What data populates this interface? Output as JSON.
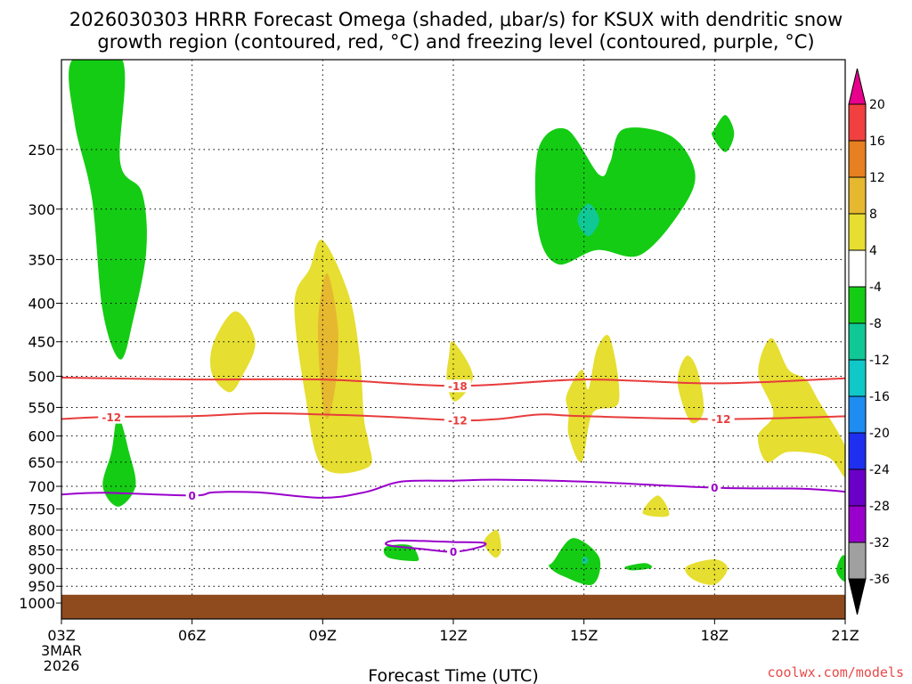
{
  "chart_data": {
    "type": "heatmap",
    "title_line1": "2026030303 HRRR Forecast Omega (shaded, μbar/s) for KSUX with dendritic snow",
    "title_line2": "growth region (contoured, red, °C) and freezing level (contoured, purple, °C)",
    "xlabel": "Forecast Time (UTC)",
    "x_range_hours": [
      0,
      18
    ],
    "x_ticks": [
      {
        "hour": 0,
        "label": "03Z",
        "sub": [
          "3MAR",
          "2026"
        ]
      },
      {
        "hour": 3,
        "label": "06Z"
      },
      {
        "hour": 6,
        "label": "09Z"
      },
      {
        "hour": 9,
        "label": "12Z"
      },
      {
        "hour": 12,
        "label": "15Z"
      },
      {
        "hour": 15,
        "label": "18Z"
      },
      {
        "hour": 18,
        "label": "21Z"
      }
    ],
    "y_axis": "pressure (mb), log scale",
    "y_range": [
      190,
      1050
    ],
    "y_ticks": [
      250,
      300,
      350,
      400,
      450,
      500,
      550,
      600,
      650,
      700,
      750,
      800,
      850,
      900,
      950,
      1000
    ],
    "ground_pressure": 975,
    "ground_color": "#8f4a1e",
    "colorbar": {
      "levels": [
        -36,
        -32,
        -28,
        -24,
        -20,
        -16,
        -12,
        -8,
        -4,
        4,
        8,
        12,
        16,
        20
      ],
      "labels": [
        "-36",
        "-32",
        "-28",
        "-24",
        "-20",
        "-16",
        "-12",
        "-8",
        "-4",
        "4",
        "8",
        "12",
        "16",
        "20"
      ],
      "colors": [
        "#000000",
        "#a0a0a0",
        "#9a00cc",
        "#6a00c8",
        "#1e2ff0",
        "#1e8cf0",
        "#10c8c8",
        "#10c896",
        "#14cc14",
        "#ffffff",
        "#e6de30",
        "#e6b830",
        "#e68020",
        "#f04040",
        "#e8008c"
      ]
    },
    "omega_regions": [
      {
        "name": "upper-left-ascent",
        "color": "#14cc14",
        "points": [
          [
            0.25,
            190
          ],
          [
            1.4,
            190
          ],
          [
            1.35,
            260
          ],
          [
            1.85,
            285
          ],
          [
            1.95,
            340
          ],
          [
            1.65,
            420
          ],
          [
            1.35,
            475
          ],
          [
            0.95,
            410
          ],
          [
            0.7,
            290
          ],
          [
            0.3,
            230
          ]
        ]
      },
      {
        "name": "low-left-ascent",
        "color": "#14cc14",
        "points": [
          [
            1.3,
            565
          ],
          [
            1.55,
            630
          ],
          [
            1.7,
            700
          ],
          [
            1.3,
            745
          ],
          [
            0.95,
            700
          ],
          [
            1.15,
            630
          ]
        ]
      },
      {
        "name": "upper-right-ascent",
        "color": "#14cc14",
        "points": [
          [
            10.95,
            250
          ],
          [
            11.6,
            235
          ],
          [
            12.35,
            270
          ],
          [
            12.6,
            260
          ],
          [
            12.9,
            235
          ],
          [
            14.0,
            240
          ],
          [
            14.55,
            268
          ],
          [
            14.25,
            300
          ],
          [
            13.3,
            345
          ],
          [
            12.3,
            340
          ],
          [
            11.4,
            355
          ],
          [
            10.95,
            320
          ]
        ]
      },
      {
        "name": "upper-right-ascent-core",
        "color": "#10c896",
        "points": [
          [
            11.85,
            310
          ],
          [
            12.1,
            295
          ],
          [
            12.35,
            310
          ],
          [
            12.1,
            326
          ]
        ]
      },
      {
        "name": "small-top-right-ascent",
        "color": "#14cc14",
        "points": [
          [
            15.0,
            235
          ],
          [
            15.25,
            225
          ],
          [
            15.45,
            238
          ],
          [
            15.25,
            252
          ],
          [
            14.95,
            240
          ]
        ]
      },
      {
        "name": "mid-level-ascent-850",
        "color": "#14cc14",
        "points": [
          [
            7.45,
            842
          ],
          [
            8.0,
            838
          ],
          [
            8.2,
            870
          ],
          [
            8.1,
            880
          ],
          [
            7.5,
            870
          ]
        ]
      },
      {
        "name": "low-level-ascent-880",
        "color": "#14cc14",
        "points": [
          [
            11.3,
            880
          ],
          [
            11.75,
            820
          ],
          [
            12.35,
            870
          ],
          [
            12.2,
            945
          ],
          [
            11.5,
            920
          ],
          [
            11.2,
            895
          ]
        ]
      },
      {
        "name": "low-level-ascent-core",
        "color": "#10c896",
        "points": [
          [
            11.95,
            875
          ],
          [
            12.05,
            868
          ],
          [
            12.1,
            880
          ],
          [
            12.0,
            888
          ]
        ]
      },
      {
        "name": "small-ascent-900",
        "color": "#14cc14",
        "points": [
          [
            12.95,
            895
          ],
          [
            13.4,
            885
          ],
          [
            13.55,
            898
          ],
          [
            13.1,
            905
          ]
        ]
      },
      {
        "name": "edge-ascent-900",
        "color": "#14cc14",
        "points": [
          [
            17.8,
            908
          ],
          [
            17.9,
            870
          ],
          [
            18.0,
            870
          ],
          [
            18.0,
            935
          ]
        ]
      },
      {
        "name": "descent-0730",
        "color": "#e6de30",
        "points": [
          [
            3.5,
            450
          ],
          [
            4.0,
            410
          ],
          [
            4.45,
            450
          ],
          [
            4.15,
            500
          ],
          [
            3.85,
            525
          ],
          [
            3.45,
            495
          ]
        ]
      },
      {
        "name": "descent-0900",
        "color": "#e6de30",
        "points": [
          [
            5.7,
            360
          ],
          [
            6.0,
            330
          ],
          [
            6.6,
            390
          ],
          [
            6.85,
            470
          ],
          [
            6.95,
            570
          ],
          [
            7.05,
            610
          ],
          [
            7.05,
            660
          ],
          [
            6.0,
            660
          ],
          [
            5.6,
            530
          ],
          [
            5.35,
            400
          ]
        ]
      },
      {
        "name": "descent-0900-core",
        "color": "#e6b830",
        "points": [
          [
            5.9,
            420
          ],
          [
            6.1,
            365
          ],
          [
            6.35,
            430
          ],
          [
            6.3,
            510
          ],
          [
            6.1,
            570
          ],
          [
            5.95,
            510
          ]
        ]
      },
      {
        "name": "descent-1200",
        "color": "#e6de30",
        "points": [
          [
            8.9,
            470
          ],
          [
            9.0,
            450
          ],
          [
            9.45,
            500
          ],
          [
            9.05,
            540
          ],
          [
            8.85,
            510
          ]
        ]
      },
      {
        "name": "descent-1430-to-1600",
        "color": "#e6de30",
        "points": [
          [
            11.6,
            530
          ],
          [
            11.95,
            490
          ],
          [
            12.1,
            520
          ],
          [
            12.3,
            460
          ],
          [
            12.6,
            445
          ],
          [
            12.8,
            540
          ],
          [
            12.2,
            560
          ],
          [
            11.95,
            650
          ],
          [
            11.65,
            600
          ],
          [
            11.65,
            560
          ]
        ]
      },
      {
        "name": "descent-1700",
        "color": "#e6de30",
        "points": [
          [
            14.35,
            470
          ],
          [
            14.6,
            490
          ],
          [
            14.75,
            555
          ],
          [
            14.45,
            575
          ],
          [
            14.15,
            510
          ]
        ]
      },
      {
        "name": "descent-1930-to-2100",
        "color": "#e6de30",
        "points": [
          [
            16.0,
            495
          ],
          [
            16.3,
            445
          ],
          [
            16.7,
            490
          ],
          [
            17.1,
            505
          ],
          [
            17.4,
            540
          ],
          [
            18.0,
            620
          ],
          [
            18.0,
            680
          ],
          [
            17.6,
            640
          ],
          [
            16.7,
            630
          ],
          [
            16.2,
            650
          ],
          [
            16.0,
            600
          ],
          [
            16.35,
            560
          ]
        ]
      },
      {
        "name": "descent-1600-low",
        "color": "#e6de30",
        "points": [
          [
            13.35,
            760
          ],
          [
            13.7,
            720
          ],
          [
            13.95,
            765
          ]
        ]
      },
      {
        "name": "descent-1300-low",
        "color": "#e6de30",
        "points": [
          [
            9.7,
            830
          ],
          [
            10.0,
            800
          ],
          [
            10.1,
            850
          ],
          [
            9.95,
            870
          ]
        ]
      },
      {
        "name": "descent-1800-low",
        "color": "#e6de30",
        "points": [
          [
            14.35,
            895
          ],
          [
            15.0,
            875
          ],
          [
            15.3,
            900
          ],
          [
            15.0,
            945
          ],
          [
            14.5,
            930
          ]
        ]
      }
    ],
    "contours": [
      {
        "name": "dgz-minus-18",
        "color": "#e83c3c",
        "value_label": "-18",
        "label_positions": [
          [
            9.1,
            515
          ]
        ],
        "points": [
          [
            -0.05,
            502
          ],
          [
            3,
            505
          ],
          [
            6,
            505
          ],
          [
            9.1,
            515
          ],
          [
            12,
            505
          ],
          [
            15,
            511
          ],
          [
            18.05,
            503
          ]
        ]
      },
      {
        "name": "dgz-minus-12",
        "color": "#e83c3c",
        "value_label": "-12",
        "label_positions": [
          [
            1.15,
            567
          ],
          [
            9.1,
            572
          ],
          [
            15.15,
            570
          ]
        ],
        "points": [
          [
            -0.05,
            570
          ],
          [
            1.15,
            566
          ],
          [
            3,
            565
          ],
          [
            4.5,
            560
          ],
          [
            6,
            562
          ],
          [
            7.5,
            566
          ],
          [
            9.1,
            572
          ],
          [
            10,
            570
          ],
          [
            11,
            562
          ],
          [
            12,
            565
          ],
          [
            15.15,
            570
          ],
          [
            18.05,
            565
          ]
        ]
      },
      {
        "name": "freezing-level-main",
        "color": "#9a00cc",
        "value_label": "0",
        "label_positions": [
          [
            3.0,
            720
          ],
          [
            15.0,
            703
          ]
        ],
        "points": [
          [
            -0.05,
            718
          ],
          [
            1,
            714
          ],
          [
            3,
            720
          ],
          [
            3.5,
            713
          ],
          [
            4.5,
            713
          ],
          [
            6,
            725
          ],
          [
            7,
            712
          ],
          [
            7.8,
            690
          ],
          [
            9,
            688
          ],
          [
            10,
            686
          ],
          [
            12,
            690
          ],
          [
            15,
            703
          ],
          [
            17,
            705
          ],
          [
            18.05,
            712
          ]
        ]
      },
      {
        "name": "freezing-level-loop",
        "color": "#9a00cc",
        "value_label": "0",
        "label_positions": [
          [
            9.0,
            855
          ]
        ],
        "points": [
          [
            7.45,
            833
          ],
          [
            7.7,
            826
          ],
          [
            8.5,
            828
          ],
          [
            9.0,
            830
          ],
          [
            9.7,
            832
          ],
          [
            9.6,
            843
          ],
          [
            9.0,
            855
          ],
          [
            8.3,
            848
          ],
          [
            7.6,
            840
          ],
          [
            7.45,
            833
          ]
        ]
      }
    ]
  },
  "credit": "coolwx.com/models"
}
